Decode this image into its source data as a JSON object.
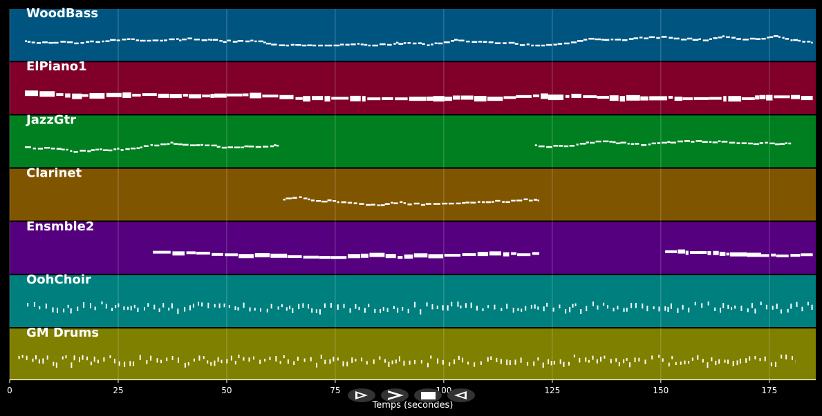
{
  "chart_data": {
    "type": "pianoroll",
    "xlabel": "Temps (secondes)",
    "xlim": [
      0,
      185.7
    ],
    "xticks": [
      0,
      25,
      50,
      75,
      100,
      125,
      150,
      175
    ],
    "grid": true,
    "series": [
      {
        "name": "WoodBass",
        "color": "#005580",
        "segments": [
          [
            3.5,
            185
          ]
        ]
      },
      {
        "name": "ElPiano1",
        "color": "#80002a",
        "segments": [
          [
            3.5,
            185
          ]
        ]
      },
      {
        "name": "JazzGtr",
        "color": "#007f20",
        "segments": [
          [
            3.5,
            62
          ],
          [
            121,
            180
          ]
        ]
      },
      {
        "name": "Clarinet",
        "color": "#7f5500",
        "segments": [
          [
            63,
            122
          ]
        ]
      },
      {
        "name": "Ensmble2",
        "color": "#55007f",
        "segments": [
          [
            33,
            122
          ],
          [
            151,
            185
          ]
        ]
      },
      {
        "name": "OohChoir",
        "color": "#007f7f",
        "segments": [
          [
            4,
            185
          ]
        ]
      },
      {
        "name": "GM Drums",
        "color": "#7f7f00",
        "segments": [
          [
            2,
            181
          ]
        ]
      }
    ]
  }
}
